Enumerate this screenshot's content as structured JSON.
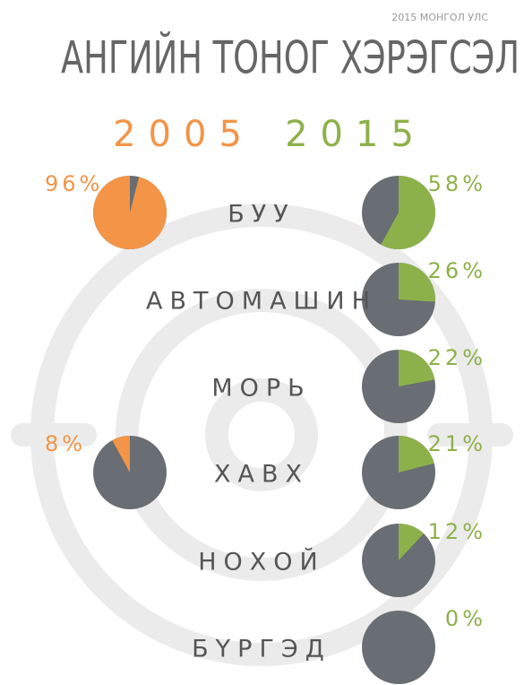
{
  "chart_data": {
    "type": "pie",
    "subtitle": "2015 МОНГОЛ УЛС",
    "title": "АНГИЙН ТОНОГ ХЭРЭГСЭЛ",
    "categories": [
      "БУУ",
      "АВТОМАШИН",
      "МОРЬ",
      "ХАВХ",
      "НОХОЙ",
      "БҮРГЭД"
    ],
    "remainder_color": "#686e73",
    "series": [
      {
        "name": "2005",
        "color": "#f39447",
        "values": [
          96,
          null,
          null,
          8,
          null,
          null
        ],
        "value_labels": [
          "96%",
          null,
          null,
          "8%",
          null,
          null
        ]
      },
      {
        "name": "2015",
        "color": "#8db14a",
        "values": [
          58,
          26,
          22,
          21,
          12,
          0
        ],
        "value_labels": [
          "58%",
          "26%",
          "22%",
          "21%",
          "12%",
          "0%"
        ]
      }
    ]
  }
}
